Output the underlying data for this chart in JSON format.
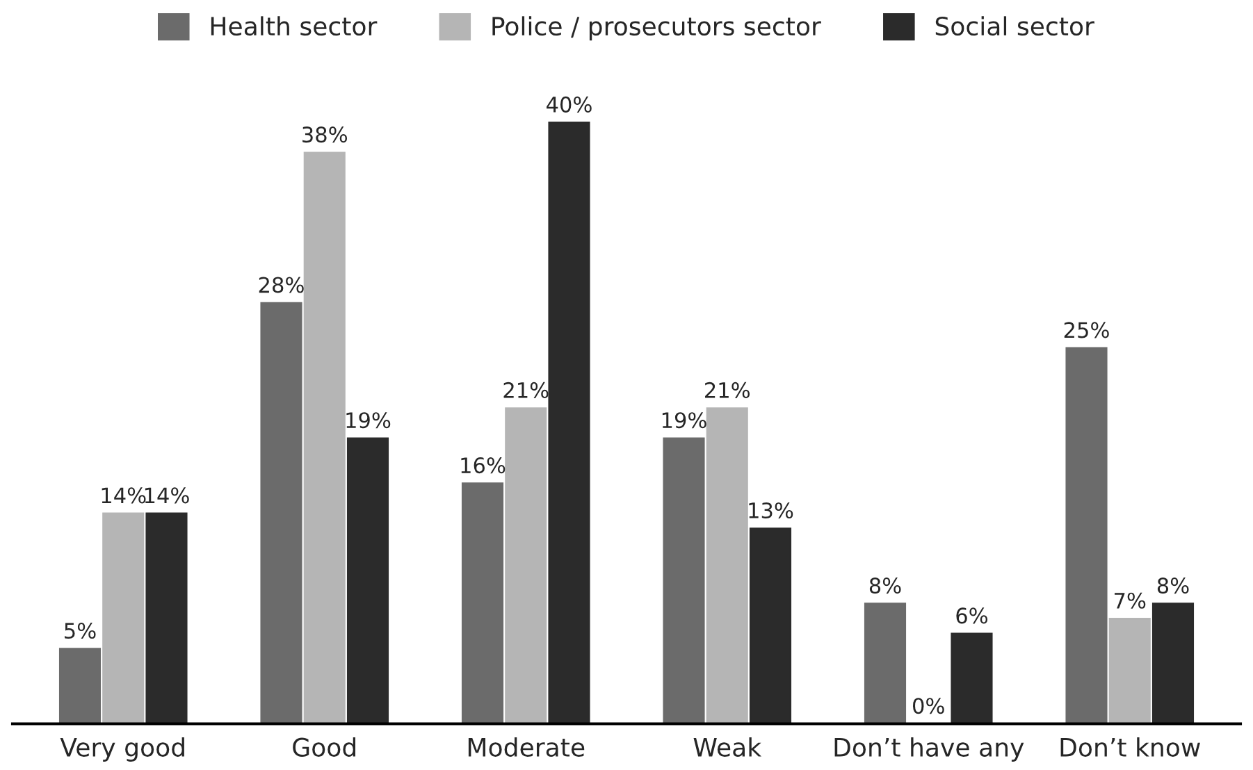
{
  "chart_data": {
    "type": "bar",
    "categories": [
      "Very good",
      "Good",
      "Moderate",
      "Weak",
      "Don’t have any",
      "Don’t know"
    ],
    "series": [
      {
        "name": "Health sector",
        "color": "#6b6b6b",
        "values": [
          5,
          28,
          16,
          19,
          8,
          25
        ],
        "value_labels": [
          "5%",
          "28%",
          "16%",
          "19%",
          "8%",
          "25%"
        ]
      },
      {
        "name": "Police / prosecutors sector",
        "color": "#b5b5b5",
        "values": [
          14,
          38,
          21,
          21,
          0,
          7
        ],
        "value_labels": [
          "14%",
          "38%",
          "21%",
          "21%",
          "0%",
          "7%"
        ]
      },
      {
        "name": "Social sector",
        "color": "#2b2b2b",
        "values": [
          14,
          19,
          40,
          13,
          6,
          8
        ],
        "value_labels": [
          "14%",
          "19%",
          "40%",
          "13%",
          "6%",
          "8%"
        ]
      }
    ],
    "legend": "top",
    "tick_labels": "x",
    "grid": false
  }
}
